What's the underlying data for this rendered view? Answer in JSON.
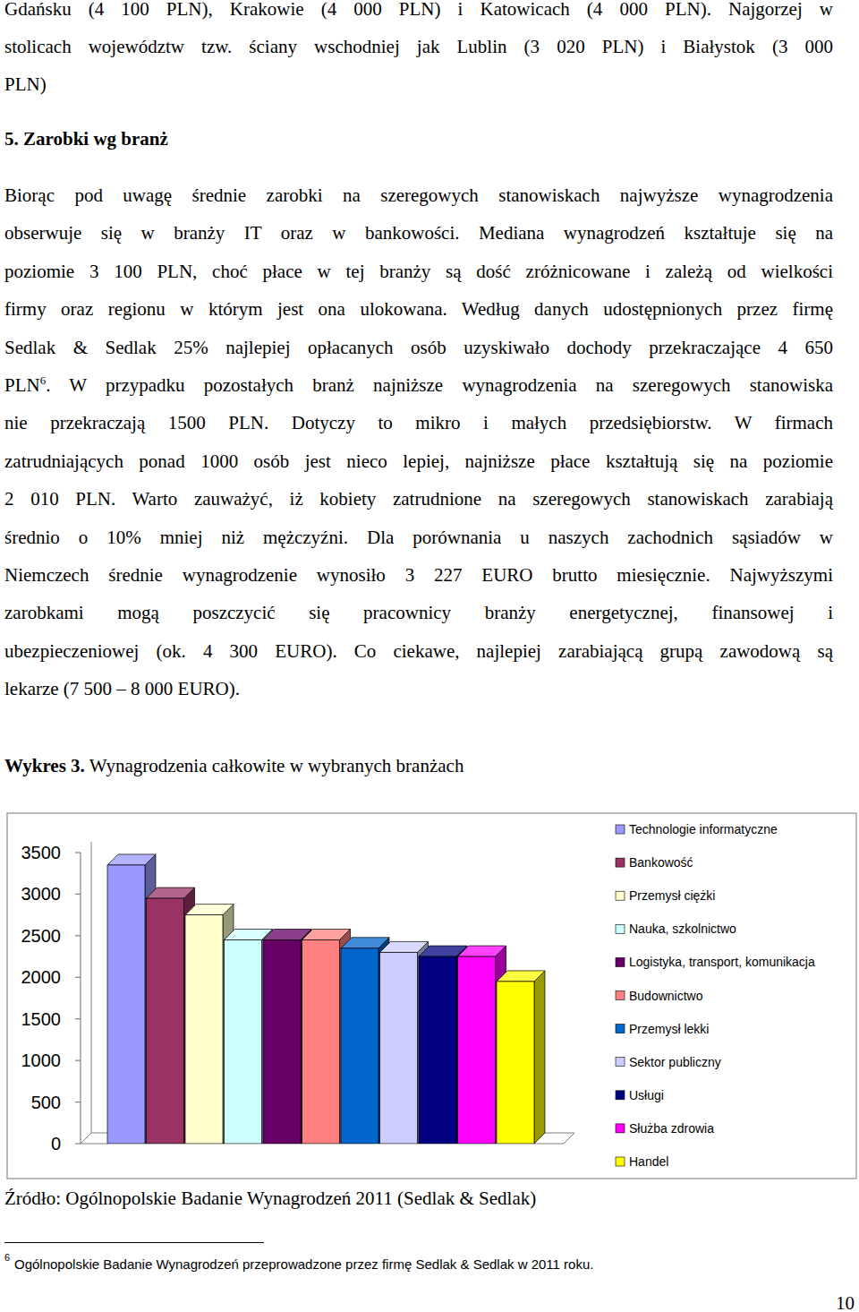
{
  "document": {
    "paragraph_1": {
      "lines": [
        "Gdańsku (4 100 PLN), Krakowie (4 000 PLN) i Katowicach (4 000 PLN). Najgorzej w",
        "stolicach województw tzw. ściany wschodniej jak Lublin (3 020 PLN) i Białystok (3 000",
        "PLN)"
      ]
    },
    "heading": "5. Zarobki wg branż",
    "paragraph_2": {
      "lines": [
        "Biorąc pod uwagę średnie zarobki na szeregowych stanowiskach najwyższe wynagrodzenia",
        "obserwuje się w branży IT oraz w bankowości. Mediana wynagrodzeń kształtuje się na",
        "poziomie 3 100 PLN, choć płace w tej branży są dość zróżnicowane i zależą od wielkości",
        "firmy oraz regionu w którym jest ona ulokowana. Według danych udostępnionych przez firmę",
        "Sedlak & Sedlak 25% najlepiej opłacanych osób uzyskiwało dochody przekraczające 4 650",
        {
          "before": "PLN",
          "sup": "6",
          "after": ". W przypadku pozostałych branż najniższe wynagrodzenia na szeregowych stanowiska"
        },
        "nie przekraczają 1500 PLN. Dotyczy to mikro i małych przedsiębiorstw. W firmach",
        "zatrudniających ponad 1000 osób jest nieco lepiej, najniższe płace kształtują się na poziomie",
        "2 010 PLN. Warto zauważyć, iż kobiety zatrudnione na szeregowych stanowiskach zarabiają",
        "średnio o 10% mniej niż mężczyźni. Dla porównania u naszych zachodnich sąsiadów w",
        "Niemczech średnie wynagrodzenie wynosiło 3 227 EURO brutto miesięcznie. Najwyższymi",
        "zarobkami mogą poszczycić się pracownicy branży energetycznej, finansowej i",
        "ubezpieczeniowej (ok. 4 300 EURO). Co ciekawe, najlepiej zarabiającą grupą zawodową są",
        "lekarze (7 500 – 8 000 EURO)."
      ]
    },
    "caption_label": "Wykres 3.",
    "source": "Źródło: Ogólnopolskie Badanie Wynagrodzeń 2011 (Sedlak & Sedlak)",
    "footnote": {
      "number": "6",
      "text": "Ogólnopolskie Badanie Wynagrodzeń przeprowadzone przez firmę Sedlak & Sedlak w 2011 roku."
    },
    "page_number": "10"
  },
  "chart_data": {
    "type": "bar",
    "title": "Wynagrodzenia całkowite w wybranych branżach",
    "categories": [
      "Technologie informatyczne",
      "Bankowość",
      "Przemysł ciężki",
      "Nauka, szkolnictwo",
      "Logistyka, transport, komunikacja",
      "Budownictwo",
      "Przemysł lekki",
      "Sektor publiczny",
      "Usługi",
      "Służba zdrowia",
      "Handel"
    ],
    "values": [
      3350,
      2950,
      2750,
      2450,
      2450,
      2450,
      2350,
      2300,
      2250,
      2250,
      1950
    ],
    "colors": [
      "#9999ff",
      "#993366",
      "#ffffcc",
      "#ccffff",
      "#660066",
      "#ff8080",
      "#0066cc",
      "#ccccff",
      "#000080",
      "#ff00ff",
      "#ffff00"
    ],
    "ylim": [
      0,
      3500
    ],
    "yticks": [
      0,
      500,
      1000,
      1500,
      2000,
      2500,
      3000,
      3500
    ],
    "grid": false,
    "legend": "right",
    "tick_labels": "y"
  }
}
